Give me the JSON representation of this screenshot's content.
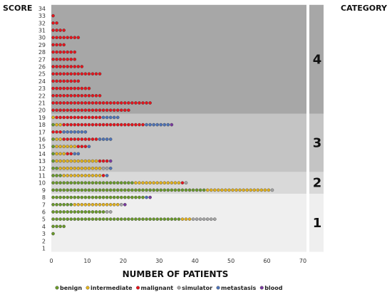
{
  "chart_data": {
    "type": "scatter",
    "title": "",
    "xlabel": "NUMBER OF PATIENTS",
    "ylabel": "SCORE",
    "category_label": "CATEGORY",
    "xlim": [
      0,
      70
    ],
    "x_ticks": [
      0,
      10,
      20,
      30,
      40,
      50,
      60,
      70
    ],
    "ylim": [
      1,
      34
    ],
    "y_ticks": [
      1,
      2,
      3,
      4,
      5,
      6,
      7,
      8,
      9,
      10,
      11,
      12,
      13,
      14,
      15,
      16,
      17,
      18,
      19,
      20,
      21,
      22,
      23,
      24,
      25,
      26,
      27,
      28,
      29,
      30,
      31,
      32,
      33,
      34
    ],
    "series": [
      {
        "name": "benign",
        "color": "#6a9a2a"
      },
      {
        "name": "intermediate",
        "color": "#e3b21d"
      },
      {
        "name": "malignant",
        "color": "#e8141c"
      },
      {
        "name": "simulator",
        "color": "#a6a6a6"
      },
      {
        "name": "metastasis",
        "color": "#4f74b8"
      },
      {
        "name": "blood",
        "color": "#7a3aa0"
      }
    ],
    "rows": [
      {
        "score": 3,
        "counts": {
          "benign": 1,
          "intermediate": 0,
          "malignant": 0,
          "simulator": 0,
          "metastasis": 0,
          "blood": 0
        }
      },
      {
        "score": 4,
        "counts": {
          "benign": 4,
          "intermediate": 0,
          "malignant": 0,
          "simulator": 0,
          "metastasis": 0,
          "blood": 0
        }
      },
      {
        "score": 5,
        "counts": {
          "benign": 36,
          "intermediate": 3,
          "malignant": 0,
          "simulator": 7,
          "metastasis": 0,
          "blood": 0
        }
      },
      {
        "score": 6,
        "counts": {
          "benign": 15,
          "intermediate": 0,
          "malignant": 0,
          "simulator": 2,
          "metastasis": 0,
          "blood": 0
        }
      },
      {
        "score": 7,
        "counts": {
          "benign": 6,
          "intermediate": 13,
          "malignant": 0,
          "simulator": 1,
          "metastasis": 0,
          "blood": 1
        }
      },
      {
        "score": 8,
        "counts": {
          "benign": 26,
          "intermediate": 0,
          "malignant": 0,
          "simulator": 0,
          "metastasis": 1,
          "blood": 1
        }
      },
      {
        "score": 9,
        "counts": {
          "benign": 43,
          "intermediate": 18,
          "malignant": 0,
          "simulator": 1,
          "metastasis": 0,
          "blood": 0
        }
      },
      {
        "score": 10,
        "counts": {
          "benign": 23,
          "intermediate": 13,
          "malignant": 1,
          "simulator": 1,
          "metastasis": 0,
          "blood": 0
        }
      },
      {
        "score": 11,
        "counts": {
          "benign": 3,
          "intermediate": 11,
          "malignant": 1,
          "simulator": 0,
          "metastasis": 1,
          "blood": 0
        }
      },
      {
        "score": 12,
        "counts": {
          "benign": 2,
          "intermediate": 12,
          "malignant": 0,
          "simulator": 2,
          "metastasis": 1,
          "blood": 0
        }
      },
      {
        "score": 13,
        "counts": {
          "benign": 1,
          "intermediate": 12,
          "malignant": 3,
          "simulator": 0,
          "metastasis": 0,
          "blood": 1
        }
      },
      {
        "score": 14,
        "counts": {
          "benign": 1,
          "intermediate": 3,
          "malignant": 2,
          "simulator": 0,
          "metastasis": 2,
          "blood": 0
        }
      },
      {
        "score": 15,
        "counts": {
          "benign": 1,
          "intermediate": 6,
          "malignant": 3,
          "simulator": 0,
          "metastasis": 1,
          "blood": 0
        }
      },
      {
        "score": 16,
        "counts": {
          "benign": 1,
          "intermediate": 2,
          "malignant": 10,
          "simulator": 0,
          "metastasis": 4,
          "blood": 0
        }
      },
      {
        "score": 17,
        "counts": {
          "benign": 0,
          "intermediate": 0,
          "malignant": 3,
          "simulator": 0,
          "metastasis": 7,
          "blood": 0
        }
      },
      {
        "score": 18,
        "counts": {
          "benign": 1,
          "intermediate": 2,
          "malignant": 23,
          "simulator": 0,
          "metastasis": 7,
          "blood": 1
        }
      },
      {
        "score": 19,
        "counts": {
          "benign": 0,
          "intermediate": 1,
          "malignant": 13,
          "simulator": 0,
          "metastasis": 5,
          "blood": 0
        }
      },
      {
        "score": 20,
        "counts": {
          "benign": 0,
          "intermediate": 0,
          "malignant": 22,
          "simulator": 0,
          "metastasis": 0,
          "blood": 0
        }
      },
      {
        "score": 21,
        "counts": {
          "benign": 0,
          "intermediate": 0,
          "malignant": 28,
          "simulator": 0,
          "metastasis": 0,
          "blood": 0
        }
      },
      {
        "score": 22,
        "counts": {
          "benign": 0,
          "intermediate": 0,
          "malignant": 14,
          "simulator": 0,
          "metastasis": 0,
          "blood": 0
        }
      },
      {
        "score": 23,
        "counts": {
          "benign": 0,
          "intermediate": 0,
          "malignant": 11,
          "simulator": 0,
          "metastasis": 0,
          "blood": 0
        }
      },
      {
        "score": 24,
        "counts": {
          "benign": 0,
          "intermediate": 0,
          "malignant": 8,
          "simulator": 0,
          "metastasis": 0,
          "blood": 0
        }
      },
      {
        "score": 25,
        "counts": {
          "benign": 0,
          "intermediate": 0,
          "malignant": 14,
          "simulator": 0,
          "metastasis": 0,
          "blood": 0
        }
      },
      {
        "score": 26,
        "counts": {
          "benign": 0,
          "intermediate": 0,
          "malignant": 9,
          "simulator": 0,
          "metastasis": 0,
          "blood": 0
        }
      },
      {
        "score": 27,
        "counts": {
          "benign": 0,
          "intermediate": 0,
          "malignant": 7,
          "simulator": 0,
          "metastasis": 0,
          "blood": 0
        }
      },
      {
        "score": 28,
        "counts": {
          "benign": 0,
          "intermediate": 0,
          "malignant": 7,
          "simulator": 0,
          "metastasis": 0,
          "blood": 0
        }
      },
      {
        "score": 29,
        "counts": {
          "benign": 0,
          "intermediate": 0,
          "malignant": 4,
          "simulator": 0,
          "metastasis": 0,
          "blood": 0
        }
      },
      {
        "score": 30,
        "counts": {
          "benign": 0,
          "intermediate": 0,
          "malignant": 8,
          "simulator": 0,
          "metastasis": 0,
          "blood": 0
        }
      },
      {
        "score": 31,
        "counts": {
          "benign": 0,
          "intermediate": 0,
          "malignant": 4,
          "simulator": 0,
          "metastasis": 0,
          "blood": 0
        }
      },
      {
        "score": 32,
        "counts": {
          "benign": 0,
          "intermediate": 0,
          "malignant": 2,
          "simulator": 0,
          "metastasis": 0,
          "blood": 0
        }
      },
      {
        "score": 33,
        "counts": {
          "benign": 0,
          "intermediate": 0,
          "malignant": 1,
          "simulator": 0,
          "metastasis": 0,
          "blood": 0
        }
      }
    ],
    "categories": [
      {
        "label": "1",
        "score_range": [
          1,
          8
        ],
        "band_color": "#efefef"
      },
      {
        "label": "2",
        "score_range": [
          9,
          11
        ],
        "band_color": "#d9d9d9"
      },
      {
        "label": "3",
        "score_range": [
          12,
          19
        ],
        "band_color": "#c4c4c4"
      },
      {
        "label": "4",
        "score_range": [
          20,
          34
        ],
        "band_color": "#a7a7a7"
      }
    ],
    "legend_position": "bottom",
    "grid": false
  }
}
